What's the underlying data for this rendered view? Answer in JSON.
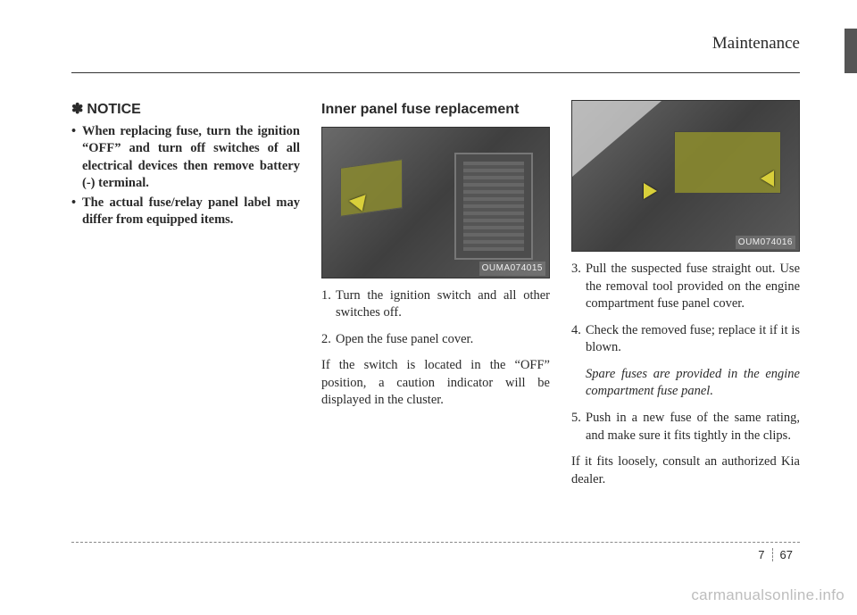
{
  "header": {
    "section": "Maintenance"
  },
  "notice": {
    "heading": "NOTICE",
    "bullet_symbol": "•",
    "items": [
      "When replacing fuse, turn the ignition “OFF” and  turn off switches of all electrical devices then remove battery (-) terminal.",
      "The actual fuse/relay panel label may differ from equipped items."
    ]
  },
  "middle": {
    "heading": "Inner panel fuse replacement",
    "photo_code": "OUMA074015",
    "step1": "Turn the ignition switch and all other switches off.",
    "step2": "Open the fuse panel cover.",
    "para": "If the switch is located in the “OFF” position, a caution indicator will be displayed in the cluster."
  },
  "right": {
    "photo_code": "OUM074016",
    "step3": "Pull the suspected fuse straight out. Use the removal tool provided on the  engine compartment fuse panel cover.",
    "step4": "Check the removed fuse; replace it if it is blown.",
    "spare": "Spare fuses are provided in the engine compartment fuse panel.",
    "step5": "Push in a new fuse of the same rating, and make sure it fits tightly in the clips.",
    "closing": "If it fits loosely, consult an authorized Kia dealer."
  },
  "footer": {
    "chapter": "7",
    "page": "67"
  },
  "watermark": "carmanualsonline.info"
}
